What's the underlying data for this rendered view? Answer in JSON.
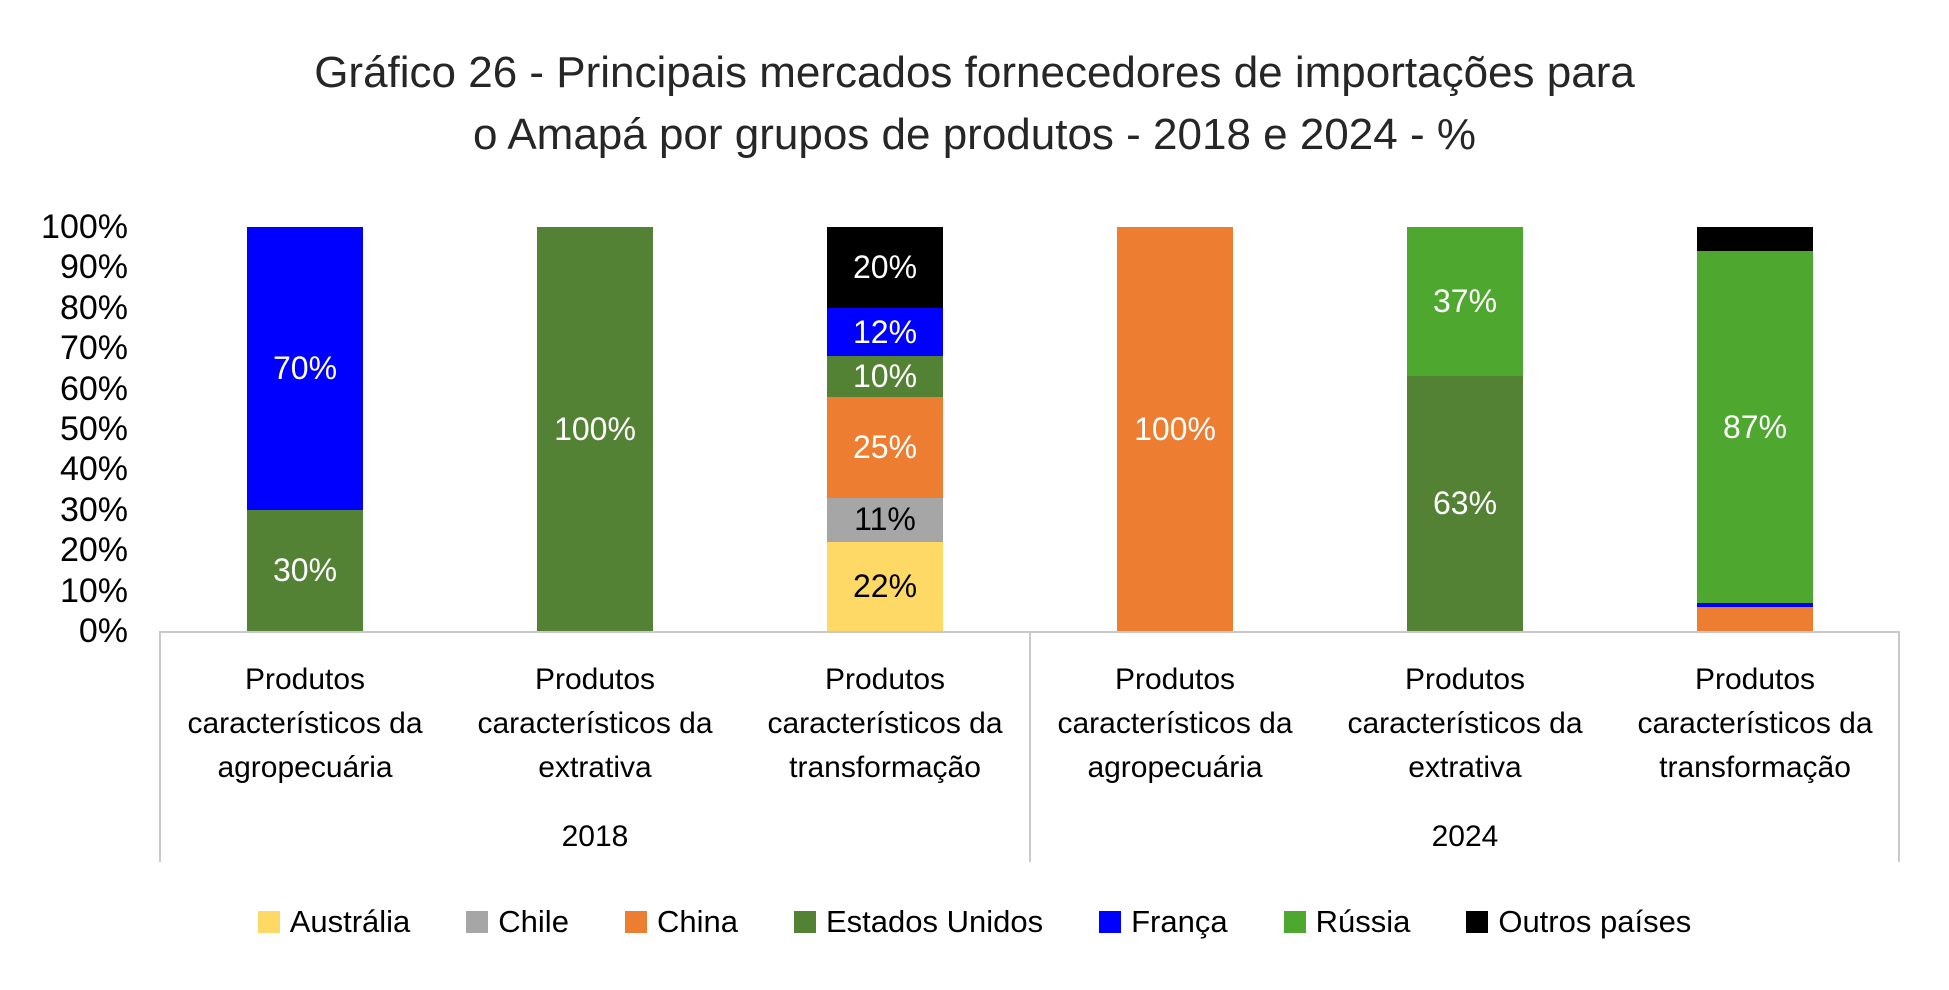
{
  "title": {
    "line1": "Gráfico 26 - Principais mercados fornecedores de importações para",
    "line2": "o Amapá por grupos de produtos - 2018 e 2024 - %"
  },
  "chart_data": {
    "type": "bar",
    "variant": "stacked-100-percent",
    "title": "Gráfico 26 - Principais mercados fornecedores de importações para o Amapá por grupos de produtos - 2018 e 2024 - %",
    "ylim": [
      0,
      100
    ],
    "ytick_labels": [
      "100%",
      "90%",
      "80%",
      "70%",
      "60%",
      "50%",
      "40%",
      "30%",
      "20%",
      "10%",
      "0%"
    ],
    "grid": false,
    "legend_position": "bottom",
    "series": [
      {
        "name": "Austrália",
        "color": "#FFD966",
        "label_color": "#000000"
      },
      {
        "name": "Chile",
        "color": "#A6A6A6",
        "label_color": "#000000"
      },
      {
        "name": "China",
        "color": "#ED7D31",
        "label_color": "#FFFFFF"
      },
      {
        "name": "Estados Unidos",
        "color": "#548235",
        "label_color": "#FFFFFF"
      },
      {
        "name": "França",
        "color": "#0000FF",
        "label_color": "#FFFFFF"
      },
      {
        "name": "Rússia",
        "color": "#4EA72E",
        "label_color": "#FFFFFF"
      },
      {
        "name": "Outros países",
        "color": "#000000",
        "label_color": "#FFFFFF"
      }
    ],
    "groups": [
      {
        "year": "2018",
        "bars": [
          {
            "category": [
              "Produtos",
              "característicos da",
              "agropecuária"
            ],
            "segments": [
              {
                "series": "Estados Unidos",
                "value": 30,
                "label": "30%"
              },
              {
                "series": "França",
                "value": 70,
                "label": "70%"
              }
            ]
          },
          {
            "category": [
              "Produtos",
              "característicos da",
              "extrativa"
            ],
            "segments": [
              {
                "series": "Estados Unidos",
                "value": 100,
                "label": "100%"
              }
            ]
          },
          {
            "category": [
              "Produtos",
              "característicos da",
              "transformação"
            ],
            "segments": [
              {
                "series": "Austrália",
                "value": 22,
                "label": "22%"
              },
              {
                "series": "Chile",
                "value": 11,
                "label": "11%"
              },
              {
                "series": "China",
                "value": 25,
                "label": "25%"
              },
              {
                "series": "Estados Unidos",
                "value": 10,
                "label": "10%"
              },
              {
                "series": "França",
                "value": 12,
                "label": "12%"
              },
              {
                "series": "Outros países",
                "value": 20,
                "label": "20%"
              }
            ]
          }
        ]
      },
      {
        "year": "2024",
        "bars": [
          {
            "category": [
              "Produtos",
              "característicos da",
              "agropecuária"
            ],
            "segments": [
              {
                "series": "China",
                "value": 100,
                "label": "100%"
              }
            ]
          },
          {
            "category": [
              "Produtos",
              "característicos da",
              "extrativa"
            ],
            "segments": [
              {
                "series": "Estados Unidos",
                "value": 63,
                "label": "63%"
              },
              {
                "series": "Rússia",
                "value": 37,
                "label": "37%"
              }
            ]
          },
          {
            "category": [
              "Produtos",
              "característicos da",
              "transformação"
            ],
            "segments": [
              {
                "series": "China",
                "value": 6,
                "label": ""
              },
              {
                "series": "França",
                "value": 1,
                "label": ""
              },
              {
                "series": "Rússia",
                "value": 87,
                "label": "87%"
              },
              {
                "series": "Outros países",
                "value": 6,
                "label": ""
              }
            ]
          }
        ]
      }
    ]
  }
}
